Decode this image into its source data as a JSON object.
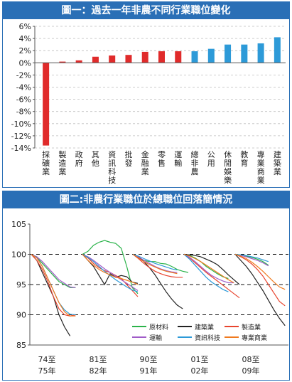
{
  "chart_data": [
    {
      "type": "bar",
      "title": "圖一：過去一年非農不同行業職位變化",
      "ylim": [
        -14,
        6
      ],
      "y_ticks": [
        "6%",
        "4%",
        "2%",
        "0%",
        "-2%",
        "-4%",
        "-6%",
        "-8%",
        "-10%",
        "-12%",
        "-14%"
      ],
      "categories": [
        "採礦業",
        "製造業",
        "政府",
        "其他",
        "資訊科技",
        "批發",
        "金融業",
        "零售",
        "運輸",
        "總非農",
        "公用",
        "休閒娛樂",
        "教育",
        "專業商業",
        "建築業"
      ],
      "values": [
        -13.6,
        0.2,
        0.4,
        1.0,
        1.2,
        1.3,
        1.8,
        1.9,
        1.9,
        1.9,
        2.3,
        3.0,
        3.0,
        3.2,
        4.2
      ],
      "colors": [
        "#e02b2b",
        "#e02b2b",
        "#e02b2b",
        "#e02b2b",
        "#e02b2b",
        "#e02b2b",
        "#e02b2b",
        "#e02b2b",
        "#e02b2b",
        "#2d9ad8",
        "#2d9ad8",
        "#2d9ad8",
        "#2d9ad8",
        "#2d9ad8",
        "#2d9ad8"
      ],
      "grid": "dashed horizontal"
    },
    {
      "type": "line",
      "title": "圖二:非農行業職位於總職位回落簡情況",
      "ylim": [
        85,
        105
      ],
      "y_ticks": [
        105,
        100,
        95,
        90,
        85
      ],
      "period_labels": [
        [
          "74至",
          "75年"
        ],
        [
          "81至",
          "82年"
        ],
        [
          "90至",
          "91年"
        ],
        [
          "01至",
          "02年"
        ],
        [
          "08至",
          "09年"
        ]
      ],
      "legend": [
        {
          "name": "原材料",
          "color": "#2bb34a"
        },
        {
          "name": "建築業",
          "color": "#222222"
        },
        {
          "name": "製造業",
          "color": "#e8442e"
        },
        {
          "name": "運輸",
          "color": "#a05cc8"
        },
        {
          "name": "資訊科技",
          "color": "#2d9ad8"
        },
        {
          "name": "專業商業",
          "color": "#f07a1e"
        }
      ],
      "reference_lines": [
        100,
        95,
        90
      ],
      "periods": [
        {
          "series": {
            "原材料": [
              100,
              99.5,
              98.5,
              97.5,
              96.5,
              95.5,
              95,
              94.5,
              94.5
            ],
            "建築業": [
              100,
              99,
              97,
              95,
              93,
              90,
              88,
              86.5
            ],
            "製造業": [
              100,
              99,
              97.5,
              95.5,
              93,
              91,
              90,
              89.8,
              90
            ],
            "運輸": [
              100,
              99.6,
              98.8,
              97.8,
              96.8,
              95.8,
              95.2,
              94.6,
              94.5
            ],
            "資訊科技": [
              100,
              99.5,
              98,
              96,
              94,
              92,
              90.8,
              90.1,
              90
            ],
            "專業商業": [
              100,
              99.4,
              98,
              96,
              94,
              92,
              90.5,
              89.8,
              89.8
            ]
          }
        },
        {
          "series": {
            "原材料": [
              100,
              100.5,
              101.5,
              102,
              102.3,
              102,
              101.8,
              101,
              98,
              94.5,
              93.5
            ],
            "建築業": [
              100,
              99,
              98,
              96.5,
              95,
              96.8,
              96.2,
              96.5,
              96.3,
              95.4,
              95.2
            ],
            "製造業": [
              100,
              99.4,
              98.5,
              97.8,
              97.3,
              97,
              96.5,
              96,
              95,
              94,
              93
            ],
            "運輸": [
              100,
              99.6,
              99,
              98.3,
              97.6,
              97,
              96.4,
              95.8,
              95.2,
              94.6,
              94
            ],
            "資訊科技": [
              100,
              99.5,
              98.8,
              98,
              97.2,
              96.5,
              95.8,
              95.2,
              94.6,
              94.1,
              93.8
            ],
            "專業商業": [
              100,
              99,
              98.2,
              97.5,
              97,
              96.6,
              96.2,
              96,
              95.7,
              95.4,
              95
            ]
          }
        },
        {
          "series": {
            "原材料": [
              100,
              99.5,
              99,
              98.8,
              98.8,
              98.5,
              98.4,
              98,
              97.5,
              97.2,
              97
            ],
            "建築業": [
              100,
              99.6,
              98.8,
              97.8,
              96.6,
              95.2,
              93.8,
              92.6,
              91.6,
              91
            ],
            "製造業": [
              100,
              99.3,
              98.5,
              97.8,
              97.2,
              96.8,
              96.5,
              96.3,
              96.2,
              96.2
            ],
            "運輸": [
              100,
              99.6,
              99,
              98.5,
              98,
              97.6,
              97.3,
              97.1,
              97
            ],
            "資訊科技": [
              100,
              99.7,
              99.3,
              98.9,
              98.5,
              98.2,
              97.9,
              97.6,
              97.4
            ],
            "專業商業": [
              100,
              99.4,
              98.8,
              98.3,
              97.9,
              97.5,
              97.2,
              97,
              96.8
            ]
          }
        },
        {
          "series": {
            "原材料": [
              100,
              99.8,
              99.4,
              98.8,
              98,
              97.4,
              96.8,
              96.3,
              96
            ],
            "建築業": [
              100,
              99.9,
              99.8,
              99.6,
              99.2,
              98.8,
              98.3,
              97.5,
              96.6,
              95.8,
              95
            ],
            "製造業": [
              100,
              99.4,
              98.6,
              97.8,
              97,
              96.3,
              95.6,
              94.9,
              94.2,
              93.5,
              92.8
            ],
            "運輸": [
              100,
              99.5,
              98.8,
              98,
              97.2,
              96.5,
              96,
              95.6,
              95.3,
              95.3
            ],
            "資訊科技": [
              100,
              99.2,
              98.2,
              97.2,
              96.2,
              95.4,
              94.8,
              94.2,
              93.8
            ],
            "專業商業": [
              100,
              99.7,
              99.3,
              98.8,
              98.2,
              97.6,
              97,
              96.4,
              95.8,
              95.3
            ]
          }
        },
        {
          "series": {
            "原材料": [
              100,
              99.9,
              99.7,
              99.5,
              99.2,
              98.8,
              98.2
            ],
            "建築業": [
              100,
              99,
              98,
              96.8,
              95.4,
              94,
              92.4,
              90.8,
              89.4,
              88.2
            ],
            "製造業": [
              100,
              99.6,
              99.1,
              98.4,
              97.5,
              96.4,
              95,
              93.6,
              92.2,
              91.5
            ],
            "運輸": [
              100,
              99.8,
              99.6,
              99.3,
              99,
              98.6,
              98.1
            ],
            "資訊科技": [
              100,
              99.9,
              99.8,
              99.6,
              99.4,
              99.1,
              98.8
            ],
            "專業商業": [
              100,
              99.7,
              99.3,
              98.7,
              98,
              97.2,
              96.3,
              95.4,
              94.6,
              94.2
            ]
          }
        }
      ]
    }
  ]
}
